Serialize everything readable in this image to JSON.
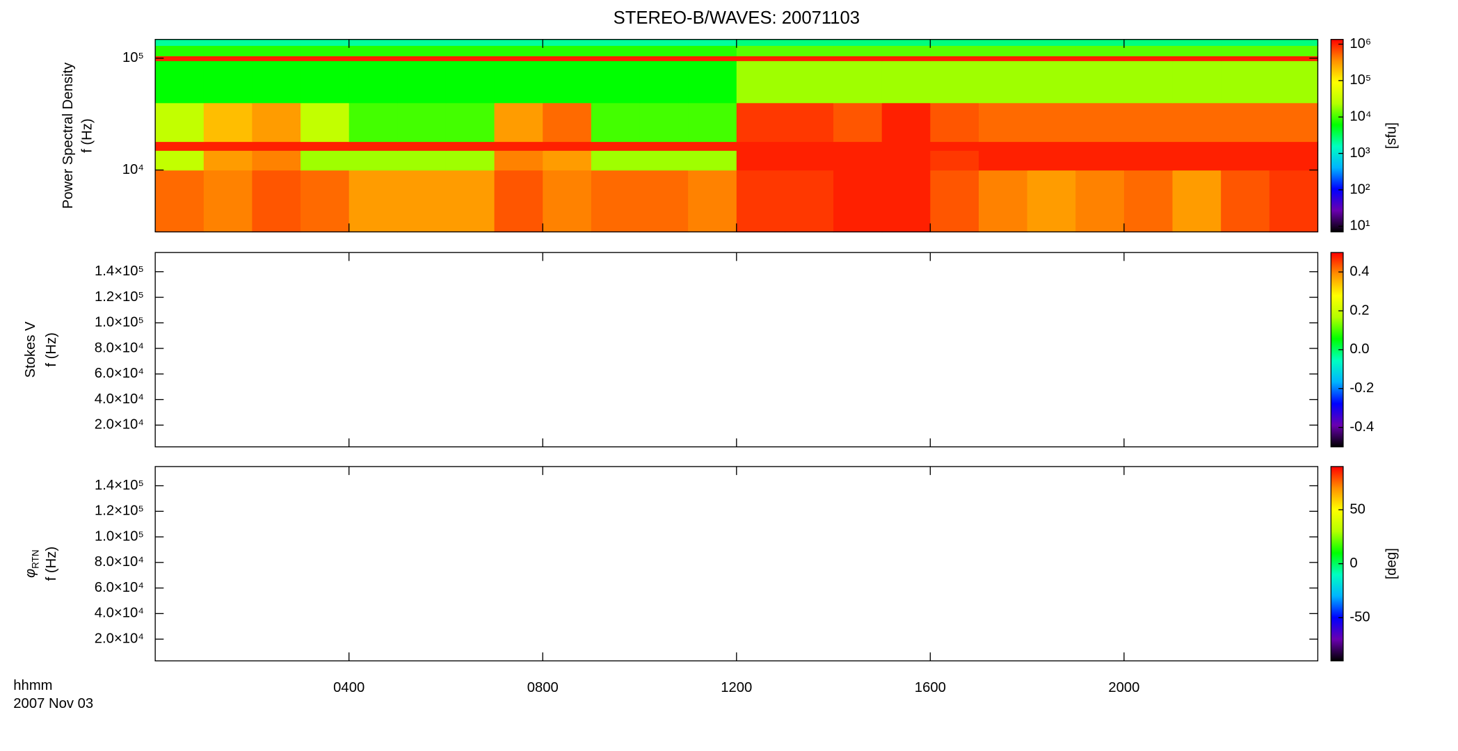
{
  "title": "STEREO-B/WAVES: 20071103",
  "xlabel": "hhmm",
  "date": "2007 Nov 03",
  "xlim": [
    0,
    24
  ],
  "xticks": [
    {
      "value": 4,
      "label": "0400"
    },
    {
      "value": 8,
      "label": "0800"
    },
    {
      "value": 12,
      "label": "1200"
    },
    {
      "value": 16,
      "label": "1600"
    },
    {
      "value": 20,
      "label": "2000"
    }
  ],
  "colormap": [
    "#000000",
    "#6a00b0",
    "#0000ff",
    "#00b4ff",
    "#00ffc0",
    "#00ff00",
    "#b4ff00",
    "#ffff00",
    "#ff9000",
    "#ff0000"
  ],
  "chart_data": [
    {
      "type": "heatmap",
      "ylabel": "Power Spectral Density",
      "ylabel2": "f (Hz)",
      "log_y": true,
      "ylim": [
        2800,
        147000
      ],
      "yticks": [
        {
          "value": 10000,
          "label": "10⁴"
        },
        {
          "value": 100000,
          "label": "10⁵"
        }
      ],
      "x": [
        0,
        1,
        2,
        3,
        4,
        5,
        6,
        7,
        8,
        9,
        10,
        11,
        12,
        13,
        14,
        15,
        16,
        17,
        18,
        19,
        20,
        21,
        22,
        23,
        24
      ],
      "y_bins": [
        2800,
        10000,
        15000,
        18000,
        40000,
        95000,
        105000,
        130000,
        147000
      ],
      "values": [
        [
          500000,
          400000,
          600000,
          500000,
          300000,
          300000,
          300000,
          600000,
          400000,
          500000,
          500000,
          400000,
          800000,
          800000,
          1000000,
          1000000,
          600000,
          400000,
          300000,
          400000,
          500000,
          300000,
          600000,
          800000
        ],
        [
          30000,
          300000,
          400000,
          20000,
          20000,
          20000,
          20000,
          400000,
          300000,
          20000,
          20000,
          20000,
          1000000,
          1000000,
          1000000,
          1000000,
          800000,
          1000000,
          1000000,
          1000000,
          1000000,
          1000000,
          1000000,
          1000000
        ],
        [
          1000000,
          1000000,
          1000000,
          1000000,
          1000000,
          1000000,
          1000000,
          1000000,
          1000000,
          1000000,
          1000000,
          1000000,
          1000000,
          1000000,
          1000000,
          1000000,
          1000000,
          1000000,
          1000000,
          1000000,
          1000000,
          1000000,
          1000000,
          1000000
        ],
        [
          30000,
          200000,
          300000,
          30000,
          10000,
          10000,
          10000,
          300000,
          500000,
          10000,
          10000,
          10000,
          800000,
          800000,
          600000,
          1000000,
          600000,
          500000,
          500000,
          500000,
          500000,
          500000,
          500000,
          500000
        ],
        [
          6000,
          6000,
          6000,
          6000,
          6000,
          6000,
          6000,
          6000,
          6000,
          6000,
          6000,
          6000,
          20000,
          20000,
          20000,
          20000,
          20000,
          20000,
          20000,
          20000,
          20000,
          20000,
          20000,
          20000
        ],
        [
          1000000,
          1000000,
          1000000,
          1000000,
          1000000,
          1000000,
          1000000,
          1000000,
          1000000,
          1000000,
          1000000,
          1000000,
          1000000,
          1000000,
          1000000,
          1000000,
          1000000,
          1000000,
          1000000,
          1000000,
          1000000,
          1000000,
          1000000,
          1000000
        ],
        [
          8000,
          8000,
          8000,
          8000,
          8000,
          8000,
          8000,
          8000,
          8000,
          8000,
          8000,
          8000,
          12000,
          12000,
          12000,
          12000,
          12000,
          12000,
          12000,
          12000,
          12000,
          12000,
          12000,
          12000
        ],
        [
          2000,
          2000,
          2000,
          2000,
          2000,
          2000,
          2000,
          2000,
          2000,
          2000,
          2000,
          2000,
          2500,
          2500,
          2500,
          2500,
          2500,
          2500,
          2500,
          2500,
          2500,
          2500,
          2500,
          2500
        ]
      ],
      "colorbar": {
        "log": true,
        "lim": [
          7,
          1350000
        ],
        "label": "[sfu]",
        "ticks": [
          {
            "value": 10,
            "label": "10¹"
          },
          {
            "value": 100,
            "label": "10²"
          },
          {
            "value": 1000,
            "label": "10³"
          },
          {
            "value": 10000,
            "label": "10⁴"
          },
          {
            "value": 100000,
            "label": "10⁵"
          },
          {
            "value": 1000000,
            "label": "10⁶"
          }
        ]
      }
    },
    {
      "type": "heatmap",
      "ylabel": "Stokes V",
      "ylabel2": "f (Hz)",
      "log_y": false,
      "ylim": [
        3000,
        155000
      ],
      "yticks": [
        {
          "value": 20000,
          "label": "2.0×10⁴"
        },
        {
          "value": 40000,
          "label": "4.0×10⁴"
        },
        {
          "value": 60000,
          "label": "6.0×10⁴"
        },
        {
          "value": 80000,
          "label": "8.0×10⁴"
        },
        {
          "value": 100000,
          "label": "1.0×10⁵"
        },
        {
          "value": 120000,
          "label": "1.2×10⁵"
        },
        {
          "value": 140000,
          "label": "1.4×10⁵"
        }
      ],
      "x": [],
      "y_bins": [],
      "values": [],
      "colorbar": {
        "log": false,
        "lim": [
          -0.5,
          0.5
        ],
        "ticks": [
          -0.4,
          -0.2,
          {
            "value": 0,
            "label": "0.0"
          },
          0.2,
          0.4
        ]
      }
    },
    {
      "type": "heatmap",
      "ylabel": "φ",
      "ylabel_sub": "RTN",
      "ylabel2": "f (Hz)",
      "log_y": false,
      "ylim": [
        3000,
        155000
      ],
      "yticks": [
        {
          "value": 20000,
          "label": "2.0×10⁴"
        },
        {
          "value": 40000,
          "label": "4.0×10⁴"
        },
        {
          "value": 60000,
          "label": "6.0×10⁴"
        },
        {
          "value": 80000,
          "label": "8.0×10⁴"
        },
        {
          "value": 100000,
          "label": "1.0×10⁵"
        },
        {
          "value": 120000,
          "label": "1.2×10⁵"
        },
        {
          "value": 140000,
          "label": "1.4×10⁵"
        }
      ],
      "x": [],
      "y_bins": [],
      "values": [],
      "colorbar": {
        "log": false,
        "lim": [
          -90,
          90
        ],
        "label": "[deg]",
        "ticks": [
          -50,
          0,
          50
        ]
      }
    }
  ]
}
